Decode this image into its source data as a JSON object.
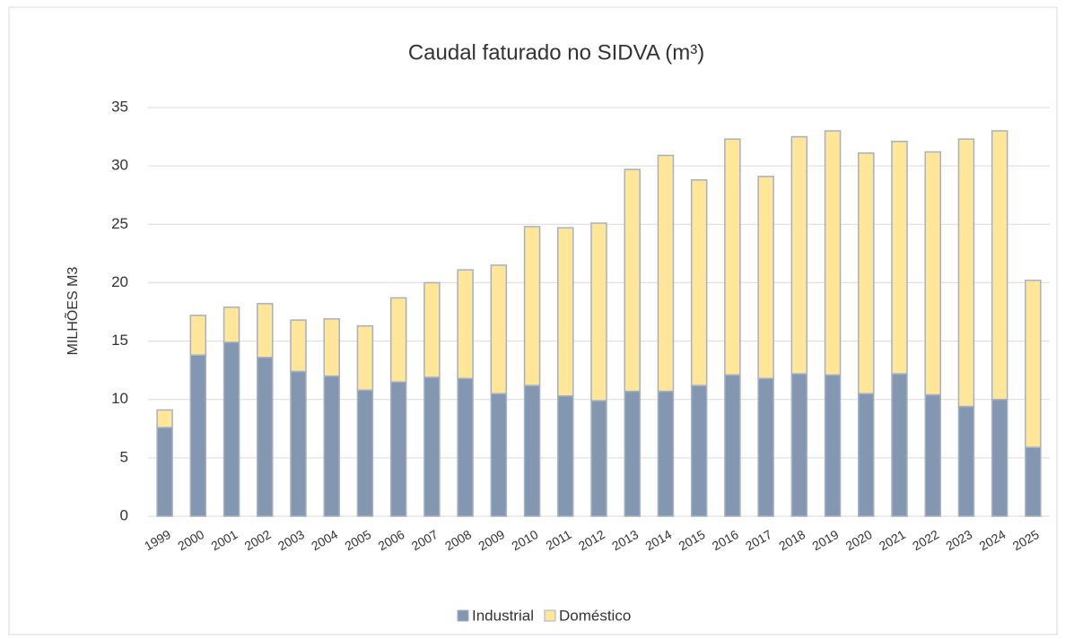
{
  "chart_data": {
    "type": "stacked_bar",
    "title": "Caudal faturado no SIDVA (m³)",
    "y_label": "MILHÕES M3",
    "categories": [
      "1999",
      "2000",
      "2001",
      "2002",
      "2003",
      "2004",
      "2005",
      "2006",
      "2007",
      "2008",
      "2009",
      "2010",
      "2011",
      "2012",
      "2013",
      "2014",
      "2015",
      "2016",
      "2017",
      "2018",
      "2019",
      "2020",
      "2021",
      "2022",
      "2023",
      "2024",
      "2025"
    ],
    "series": [
      {
        "name": "Industrial",
        "color": "#8497b0",
        "values": [
          7.6,
          13.8,
          14.9,
          13.6,
          12.4,
          12.0,
          10.8,
          11.5,
          11.9,
          11.8,
          10.5,
          11.2,
          10.3,
          9.9,
          10.7,
          10.7,
          11.2,
          12.1,
          11.8,
          12.2,
          12.1,
          10.5,
          12.2,
          10.4,
          9.4,
          10.0,
          5.9
        ]
      },
      {
        "name": "Doméstico",
        "color": "#ffe699",
        "values": [
          1.5,
          3.4,
          3.0,
          4.6,
          4.4,
          4.9,
          5.5,
          7.2,
          8.1,
          9.3,
          11.0,
          13.6,
          14.4,
          15.2,
          19.0,
          20.2,
          17.6,
          20.2,
          17.3,
          20.3,
          20.9,
          20.6,
          19.9,
          20.8,
          22.9,
          23.0,
          14.3
        ]
      }
    ],
    "ylim": [
      0,
      35
    ],
    "yticks": [
      0,
      5,
      10,
      15,
      20,
      25,
      30,
      35
    ],
    "grid": true,
    "legend": "bottom"
  }
}
